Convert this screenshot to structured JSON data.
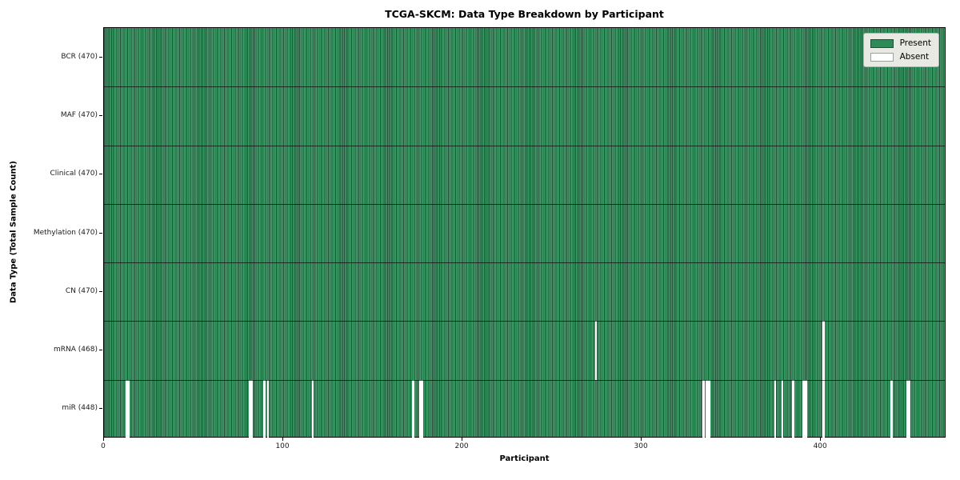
{
  "chart_data": {
    "type": "heatmap",
    "title": "TCGA-SKCM: Data Type Breakdown by Participant",
    "xlabel": "Participant",
    "ylabel": "Data Type (Total Sample Count)",
    "n_participants": 470,
    "x_range": [
      0,
      470
    ],
    "x_ticks": [
      0,
      100,
      200,
      300,
      400
    ],
    "grid": false,
    "legend_position": "upper right",
    "rows": [
      {
        "data_type": "BCR",
        "label": "BCR (470)",
        "present_count": 470,
        "absent_participants": []
      },
      {
        "data_type": "MAF",
        "label": "MAF (470)",
        "present_count": 470,
        "absent_participants": []
      },
      {
        "data_type": "Clinical",
        "label": "Clinical (470)",
        "present_count": 470,
        "absent_participants": []
      },
      {
        "data_type": "Methylation",
        "label": "Methylation (470)",
        "present_count": 470,
        "absent_participants": []
      },
      {
        "data_type": "CN",
        "label": "CN (470)",
        "present_count": 470,
        "absent_participants": []
      },
      {
        "data_type": "mRNA",
        "label": "mRNA (468)",
        "present_count": 468,
        "absent_participants": [
          274,
          401
        ]
      },
      {
        "data_type": "miR",
        "label": "miR (448)",
        "present_count": 448,
        "absent_participants": [
          12,
          13,
          81,
          82,
          89,
          91,
          116,
          172,
          176,
          177,
          334,
          336,
          337,
          374,
          378,
          384,
          390,
          391,
          401,
          439,
          448,
          449
        ]
      }
    ]
  },
  "legend": {
    "present": "Present",
    "absent": "Absent"
  },
  "colors": {
    "present_fill": "#3f9e69",
    "bar_edge": "#1e5136",
    "absent_fill": "#ffffff",
    "swatch_present": "#2e8b57",
    "swatch_absent": "#ffffff",
    "swatch_absent_border": "#9aa39a",
    "legend_bg": "#e7e9e2",
    "legend_border": "#b3b3b3",
    "axis": "#000000"
  }
}
